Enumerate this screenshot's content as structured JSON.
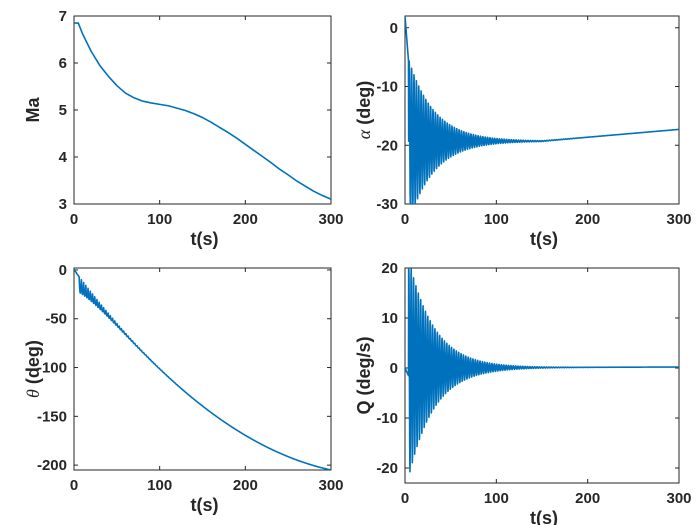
{
  "figure": {
    "line_color": "#0072BD",
    "axis_color": "#262626"
  },
  "chart_data": [
    {
      "type": "line",
      "id": "ma",
      "xlabel": "t(s)",
      "ylabel": "Ma",
      "xlim": [
        0,
        300
      ],
      "ylim": [
        3,
        7
      ],
      "xticks": [
        0,
        100,
        200,
        300
      ],
      "yticks": [
        3,
        4,
        5,
        6,
        7
      ],
      "series": [
        {
          "name": "Ma",
          "x": [
            0,
            5,
            10,
            20,
            30,
            40,
            50,
            60,
            70,
            80,
            90,
            100,
            110,
            120,
            130,
            140,
            150,
            160,
            170,
            180,
            190,
            200,
            210,
            220,
            230,
            240,
            250,
            260,
            270,
            280,
            290,
            300
          ],
          "y": [
            6.85,
            6.85,
            6.62,
            6.25,
            5.95,
            5.72,
            5.52,
            5.36,
            5.26,
            5.19,
            5.15,
            5.12,
            5.09,
            5.04,
            4.99,
            4.92,
            4.84,
            4.74,
            4.63,
            4.52,
            4.4,
            4.27,
            4.14,
            4.01,
            3.88,
            3.74,
            3.62,
            3.49,
            3.38,
            3.27,
            3.18,
            3.1
          ]
        }
      ]
    },
    {
      "type": "line",
      "id": "alpha",
      "xlabel": "t(s)",
      "ylabel_symbol": "α",
      "ylabel": "(deg)",
      "xlim": [
        0,
        300
      ],
      "ylim": [
        -30,
        2
      ],
      "xticks": [
        0,
        100,
        200,
        300
      ],
      "yticks": [
        0,
        -10,
        -20,
        -30
      ],
      "oscillation": {
        "base_start": 2,
        "base_knee": -19.3,
        "base_end": -17.3,
        "knee_t": 150,
        "amp": 14,
        "decay": 28,
        "period": 2.6,
        "onset": 4
      },
      "series": [
        {
          "name": "alpha"
        }
      ]
    },
    {
      "type": "line",
      "id": "theta",
      "xlabel": "t(s)",
      "ylabel_symbol": "θ",
      "ylabel": "(deg)",
      "xlim": [
        0,
        300
      ],
      "ylim": [
        -205,
        2
      ],
      "xticks": [
        0,
        100,
        200,
        300
      ],
      "yticks": [
        0,
        -50,
        -100,
        -150,
        -200
      ],
      "oscillation": {
        "amp": 16,
        "decay": 25,
        "period": 2.6,
        "onset": 6
      },
      "series": [
        {
          "name": "theta"
        }
      ]
    },
    {
      "type": "line",
      "id": "q",
      "xlabel": "t(s)",
      "ylabel": "Q (deg/s)",
      "xlim": [
        0,
        300
      ],
      "ylim": [
        -23,
        20
      ],
      "xticks": [
        0,
        100,
        200,
        300
      ],
      "yticks": [
        20,
        10,
        0,
        -10,
        -20
      ],
      "oscillation": {
        "amp": 22,
        "decay": 28,
        "period": 2.6,
        "onset": 4,
        "end_value": 0.2
      },
      "series": [
        {
          "name": "Q"
        }
      ]
    }
  ]
}
